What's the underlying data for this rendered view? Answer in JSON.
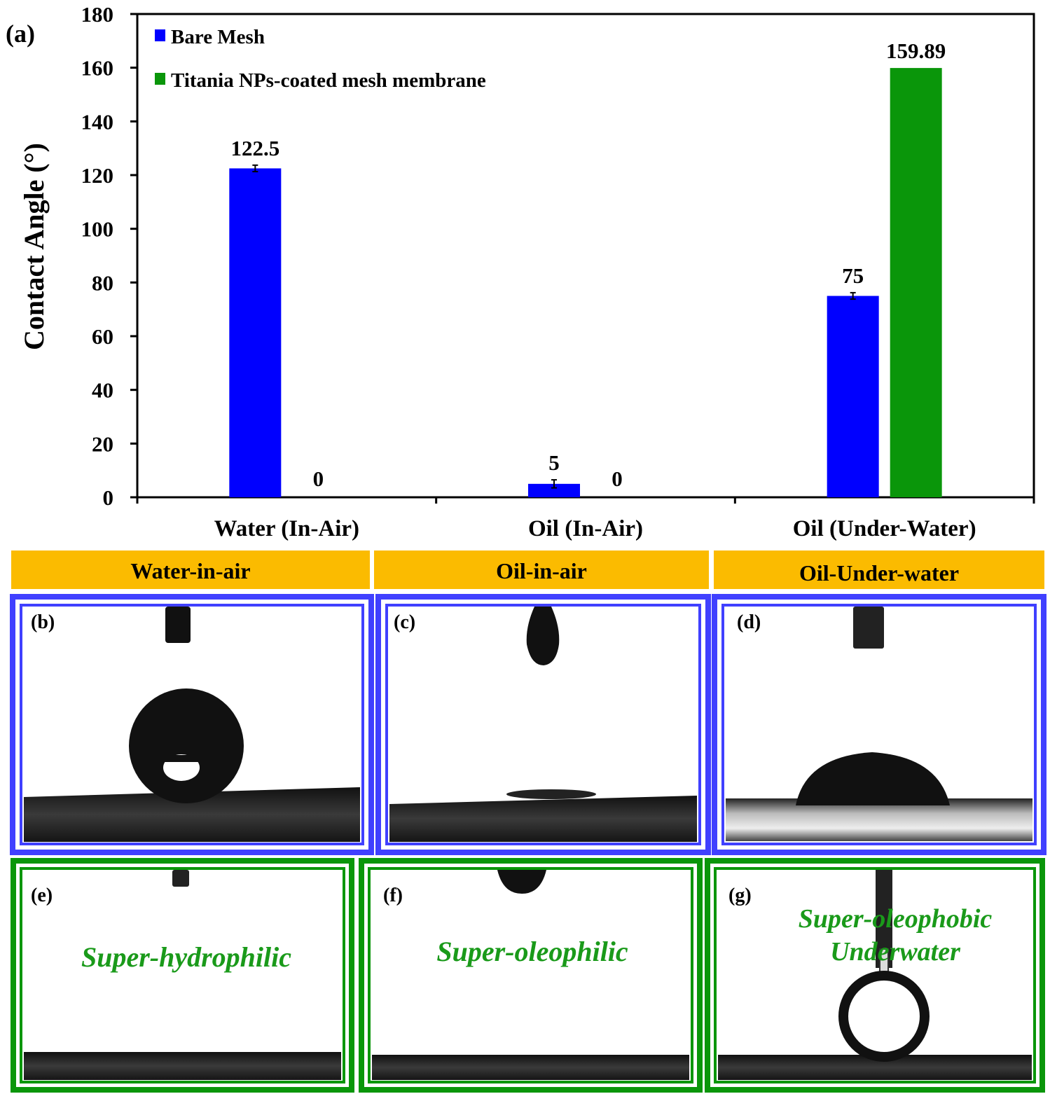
{
  "chart_data": {
    "type": "bar",
    "panel_label": "(a)",
    "ylabel": "Contact Angle (°)",
    "xlabel": "",
    "ylim": [
      0,
      180
    ],
    "ytick_step": 20,
    "y_ticks": [
      "0",
      "20",
      "40",
      "60",
      "80",
      "100",
      "120",
      "140",
      "160",
      "180"
    ],
    "categories": [
      "Water (In-Air)",
      "Oil (In-Air)",
      "Oil (Under-Water)"
    ],
    "series": [
      {
        "name": "Bare Mesh",
        "color": "#0000ff",
        "values": [
          122.5,
          5,
          75
        ],
        "labels": [
          "122.5",
          "5",
          "75"
        ],
        "error": [
          1.2,
          1.5,
          1.2
        ]
      },
      {
        "name": "Titania NPs-coated mesh membrane",
        "color": "#0a960a",
        "values": [
          0,
          0,
          159.89
        ],
        "labels": [
          "0",
          "0",
          "159.89"
        ],
        "error": [
          0,
          0,
          0
        ]
      }
    ],
    "legend_position": "top-left"
  },
  "headers": [
    "Water-in-air",
    "Oil-in-air",
    "Oil-Under-water"
  ],
  "colors": {
    "header_bg": "#fbbb00",
    "bare_frame": "#4040ff",
    "coated_frame": "#0a960a",
    "text_green": "#1a9a1a"
  },
  "photos": {
    "bare": [
      {
        "label": "(b)"
      },
      {
        "label": "(c)"
      },
      {
        "label": "(d)"
      }
    ],
    "coated": [
      {
        "label": "(e)",
        "caption_lines": [
          "Super-hydrophilic"
        ]
      },
      {
        "label": "(f)",
        "caption_lines": [
          "Super-oleophilic"
        ]
      },
      {
        "label": "(g)",
        "caption_lines": [
          "Super-oleophobic",
          "Underwater"
        ]
      }
    ]
  }
}
